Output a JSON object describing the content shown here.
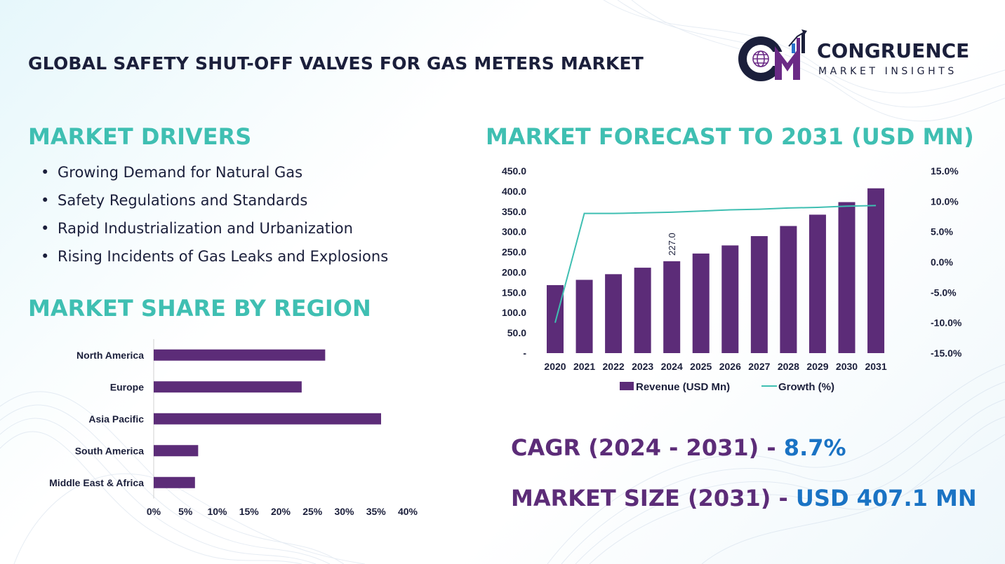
{
  "header": {
    "title": "GLOBAL SAFETY SHUT-OFF VALVES FOR GAS METERS MARKET"
  },
  "logo": {
    "name": "CONGRUENCE",
    "subtitle": "MARKET INSIGHTS",
    "colors": {
      "purple": "#6b2a86",
      "navy": "#1b1f3b",
      "blue": "#2a72c9"
    }
  },
  "drivers": {
    "heading": "MARKET DRIVERS",
    "items": [
      "Growing Demand for Natural Gas",
      "Safety Regulations and Standards",
      "Rapid Industrialization and Urbanization",
      "Rising Incidents of Gas Leaks and Explosions"
    ]
  },
  "share": {
    "heading": "MARKET SHARE BY REGION"
  },
  "forecast": {
    "heading": "MARKET FORECAST TO 2031 (USD MN)"
  },
  "stats": {
    "cagr_label": "CAGR (2024 - 2031)",
    "cagr_sep": " - ",
    "cagr_value": "8.7%",
    "size_label": "MARKET SIZE (2031)",
    "size_sep": " - ",
    "size_value": "USD 407.1 MN"
  },
  "colors": {
    "heading_teal": "#3fbfb2",
    "bar_purple": "#5c2c78",
    "line_teal": "#3fbfb2",
    "value_blue": "#1a73c4"
  },
  "chart_data": [
    {
      "type": "bar",
      "orientation": "horizontal",
      "categories": [
        "North America",
        "Europe",
        "Asia Pacific",
        "South America",
        "Middle East & Africa"
      ],
      "values": [
        27,
        23.3,
        35.8,
        7,
        6.5
      ],
      "xlim": [
        0,
        40
      ],
      "xticks": [
        "0%",
        "5%",
        "10%",
        "15%",
        "20%",
        "25%",
        "30%",
        "35%",
        "40%"
      ],
      "grid": false
    },
    {
      "type": "bar",
      "categories": [
        "2020",
        "2021",
        "2022",
        "2023",
        "2024",
        "2025",
        "2026",
        "2027",
        "2028",
        "2029",
        "2030",
        "2031"
      ],
      "series": [
        {
          "name": "Revenue (USD Mn)",
          "type": "bar",
          "axis": "left",
          "values": [
            168,
            181,
            195,
            211,
            227,
            246,
            266,
            289,
            314,
            342,
            373,
            407.1
          ],
          "data_labels": {
            "2024": "227.0"
          }
        },
        {
          "name": "Growth (%)",
          "type": "line",
          "axis": "right",
          "values": [
            -10,
            8,
            8,
            8.1,
            8.2,
            8.4,
            8.6,
            8.7,
            8.9,
            9.0,
            9.2,
            9.3
          ]
        }
      ],
      "ylim": [
        0,
        450
      ],
      "yticks": [
        "-",
        "50.0",
        "100.0",
        "150.0",
        "200.0",
        "250.0",
        "300.0",
        "350.0",
        "400.0",
        "450.0"
      ],
      "y2lim": [
        -15,
        15
      ],
      "y2ticks": [
        "-15.0%",
        "-10.0%",
        "-5.0%",
        "0.0%",
        "5.0%",
        "10.0%",
        "15.0%"
      ],
      "legend": "bottom",
      "grid": false
    }
  ]
}
